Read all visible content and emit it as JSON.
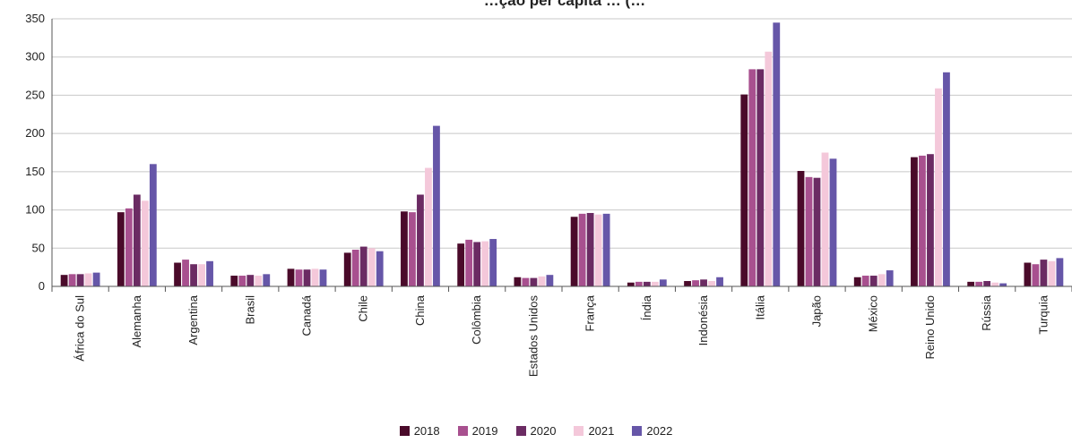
{
  "chart_data": {
    "type": "bar",
    "title": "…ção per capita … (…",
    "categories": [
      "África do Sul",
      "Alemanha",
      "Argentina",
      "Brasil",
      "Canadá",
      "Chile",
      "China",
      "Colômbia",
      "Estados Unidos",
      "França",
      "Índia",
      "Indonésia",
      "Itália",
      "Japão",
      "México",
      "Reino Unido",
      "Rússia",
      "Turquia"
    ],
    "series": [
      {
        "name": "2018",
        "color": "#4a0a2a",
        "values": [
          15,
          97,
          31,
          14,
          23,
          44,
          98,
          56,
          12,
          91,
          5,
          7,
          251,
          151,
          12,
          169,
          6,
          31
        ]
      },
      {
        "name": "2019",
        "color": "#a8508f",
        "values": [
          16,
          102,
          35,
          14,
          22,
          48,
          97,
          61,
          11,
          95,
          6,
          8,
          284,
          143,
          14,
          171,
          6,
          29
        ]
      },
      {
        "name": "2020",
        "color": "#6b2b63",
        "values": [
          16,
          120,
          29,
          15,
          22,
          52,
          120,
          58,
          11,
          96,
          6,
          9,
          284,
          142,
          14,
          173,
          7,
          35
        ]
      },
      {
        "name": "2021",
        "color": "#f4c8da",
        "values": [
          17,
          112,
          29,
          14,
          23,
          50,
          155,
          59,
          13,
          94,
          6,
          7,
          307,
          175,
          16,
          259,
          5,
          33
        ]
      },
      {
        "name": "2022",
        "color": "#6656a8",
        "values": [
          18,
          160,
          33,
          16,
          22,
          46,
          210,
          62,
          15,
          95,
          9,
          12,
          345,
          167,
          21,
          280,
          4,
          37
        ]
      }
    ],
    "ylim": [
      0,
      350
    ],
    "yticks": [
      0,
      50,
      100,
      150,
      200,
      250,
      300,
      350
    ],
    "grid": true,
    "legend_position": "bottom-center"
  }
}
